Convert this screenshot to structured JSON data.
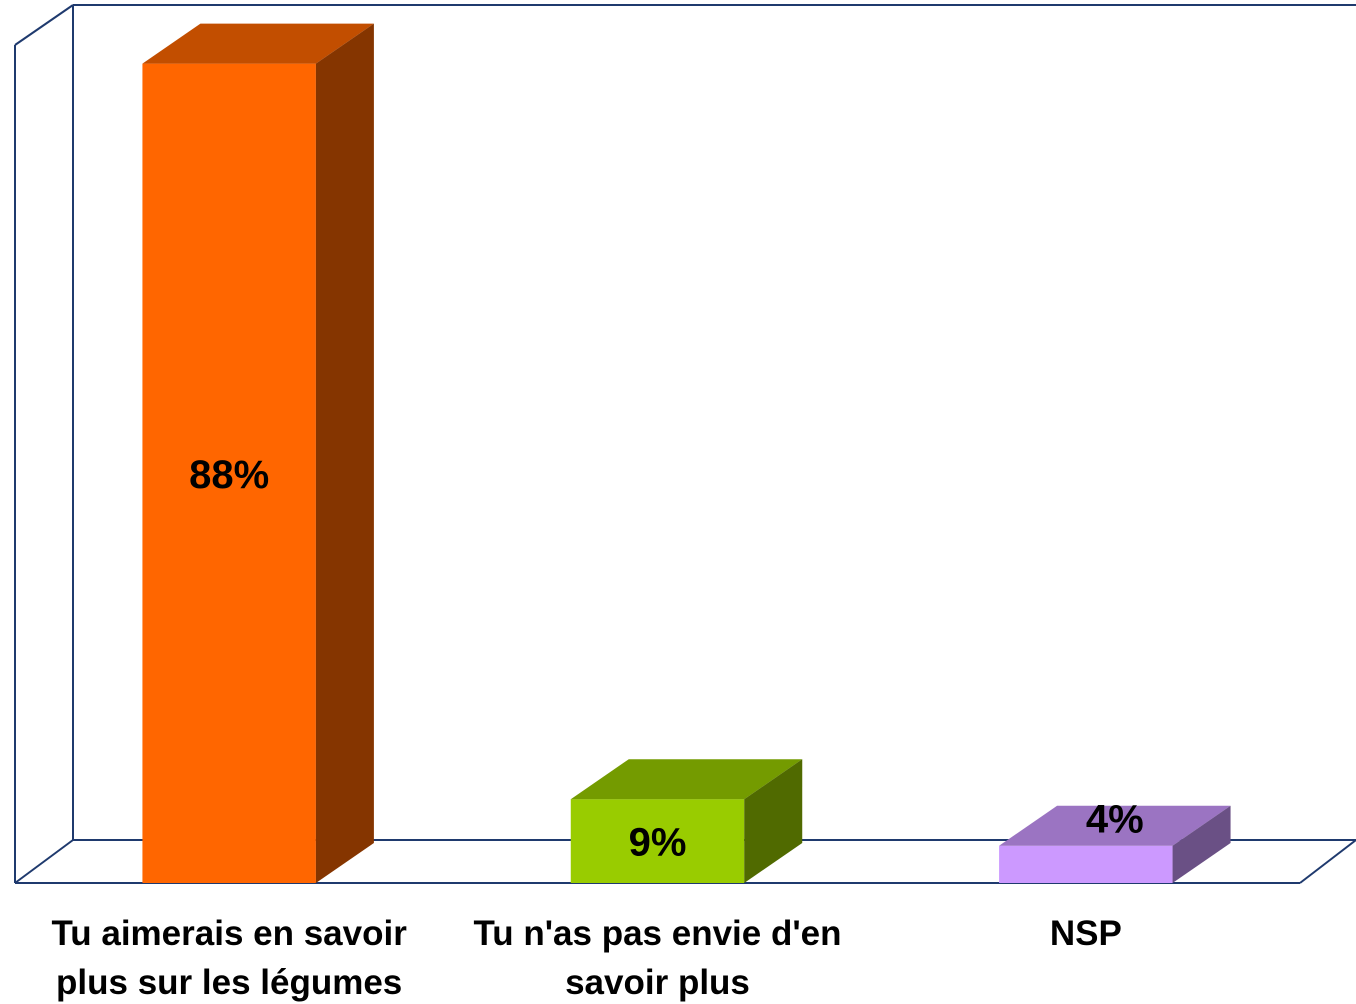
{
  "chart_data": {
    "type": "bar3d",
    "categories": [
      "Tu aimerais en savoir plus sur les légumes",
      "Tu n'as pas envie d'en savoir plus",
      "NSP"
    ],
    "values": [
      88,
      9,
      4
    ],
    "value_labels": [
      "88%",
      "9%",
      "4%"
    ],
    "colors": [
      "#ff6600",
      "#99cc00",
      "#cc99ff"
    ],
    "ylim": [
      0,
      90
    ]
  }
}
